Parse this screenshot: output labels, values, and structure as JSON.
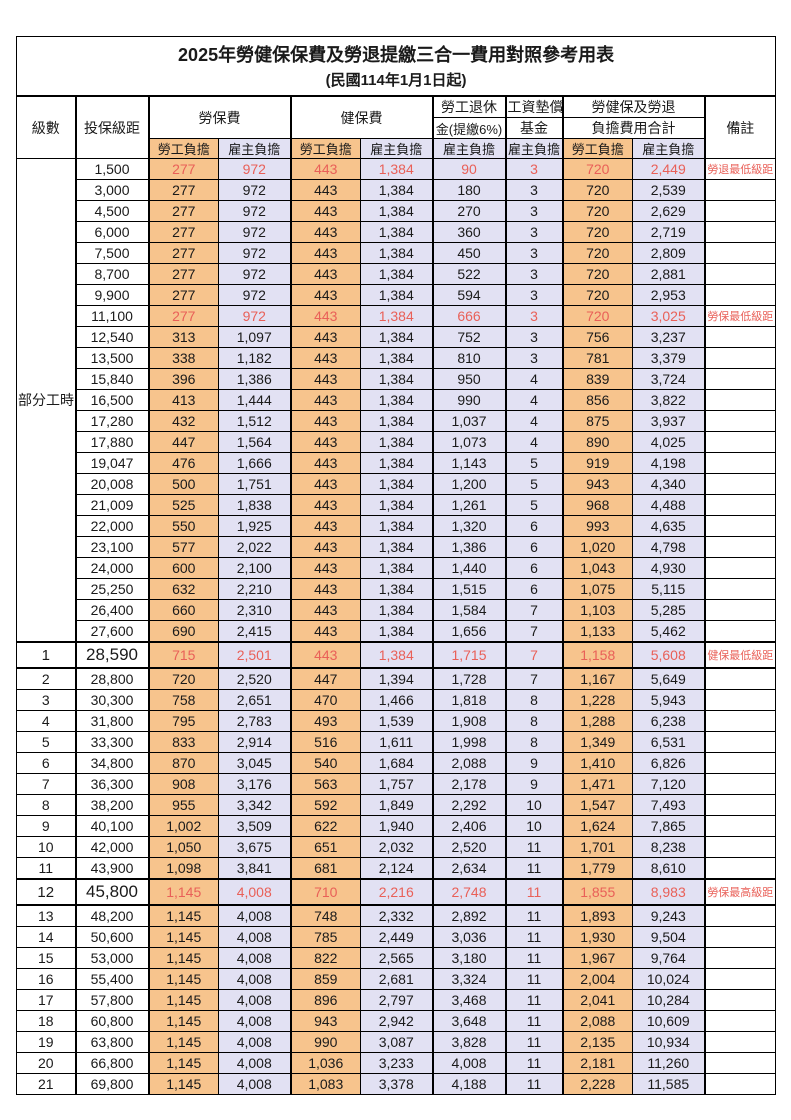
{
  "title": "2025年勞健保保費及勞退提繳三合一費用對照參考用表",
  "subtitle": "(民國114年1月1日起)",
  "colors": {
    "employee_column_bg": "#F7C48D",
    "employer_column_bg": "#E2E1F3",
    "highlight_red": "#E96058",
    "border": "#000000"
  },
  "header": {
    "level": "級數",
    "bracket": "投保級距",
    "labor_ins": "勞保費",
    "health_ins": "健保費",
    "pension_line1": "勞工退休",
    "pension_line2": "金(提繳6%)",
    "fund_line1": "工資墊償",
    "fund_line2": "基金",
    "total_line1": "勞健保及勞退",
    "total_line2": "負擔費用合計",
    "employee": "勞工負擔",
    "employer": "雇主負擔",
    "remark": "備註"
  },
  "group_label": "部分工時",
  "rows": [
    {
      "level": "",
      "bracket": "1,500",
      "li_emp": "277",
      "li_er": "972",
      "hi_emp": "443",
      "hi_er": "1,384",
      "pension": "90",
      "fund": "3",
      "tot_emp": "720",
      "tot_er": "2,449",
      "remark": "勞退最低級距",
      "hl": true,
      "big": false
    },
    {
      "level": "",
      "bracket": "3,000",
      "li_emp": "277",
      "li_er": "972",
      "hi_emp": "443",
      "hi_er": "1,384",
      "pension": "180",
      "fund": "3",
      "tot_emp": "720",
      "tot_er": "2,539",
      "remark": "",
      "hl": false,
      "big": false
    },
    {
      "level": "",
      "bracket": "4,500",
      "li_emp": "277",
      "li_er": "972",
      "hi_emp": "443",
      "hi_er": "1,384",
      "pension": "270",
      "fund": "3",
      "tot_emp": "720",
      "tot_er": "2,629",
      "remark": "",
      "hl": false,
      "big": false
    },
    {
      "level": "",
      "bracket": "6,000",
      "li_emp": "277",
      "li_er": "972",
      "hi_emp": "443",
      "hi_er": "1,384",
      "pension": "360",
      "fund": "3",
      "tot_emp": "720",
      "tot_er": "2,719",
      "remark": "",
      "hl": false,
      "big": false
    },
    {
      "level": "",
      "bracket": "7,500",
      "li_emp": "277",
      "li_er": "972",
      "hi_emp": "443",
      "hi_er": "1,384",
      "pension": "450",
      "fund": "3",
      "tot_emp": "720",
      "tot_er": "2,809",
      "remark": "",
      "hl": false,
      "big": false
    },
    {
      "level": "",
      "bracket": "8,700",
      "li_emp": "277",
      "li_er": "972",
      "hi_emp": "443",
      "hi_er": "1,384",
      "pension": "522",
      "fund": "3",
      "tot_emp": "720",
      "tot_er": "2,881",
      "remark": "",
      "hl": false,
      "big": false
    },
    {
      "level": "",
      "bracket": "9,900",
      "li_emp": "277",
      "li_er": "972",
      "hi_emp": "443",
      "hi_er": "1,384",
      "pension": "594",
      "fund": "3",
      "tot_emp": "720",
      "tot_er": "2,953",
      "remark": "",
      "hl": false,
      "big": false
    },
    {
      "level": "",
      "bracket": "11,100",
      "li_emp": "277",
      "li_er": "972",
      "hi_emp": "443",
      "hi_er": "1,384",
      "pension": "666",
      "fund": "3",
      "tot_emp": "720",
      "tot_er": "3,025",
      "remark": "勞保最低級距",
      "hl": true,
      "big": false
    },
    {
      "level": "",
      "bracket": "12,540",
      "li_emp": "313",
      "li_er": "1,097",
      "hi_emp": "443",
      "hi_er": "1,384",
      "pension": "752",
      "fund": "3",
      "tot_emp": "756",
      "tot_er": "3,237",
      "remark": "",
      "hl": false,
      "big": false
    },
    {
      "level": "",
      "bracket": "13,500",
      "li_emp": "338",
      "li_er": "1,182",
      "hi_emp": "443",
      "hi_er": "1,384",
      "pension": "810",
      "fund": "3",
      "tot_emp": "781",
      "tot_er": "3,379",
      "remark": "",
      "hl": false,
      "big": false
    },
    {
      "level": "",
      "bracket": "15,840",
      "li_emp": "396",
      "li_er": "1,386",
      "hi_emp": "443",
      "hi_er": "1,384",
      "pension": "950",
      "fund": "4",
      "tot_emp": "839",
      "tot_er": "3,724",
      "remark": "",
      "hl": false,
      "big": false
    },
    {
      "level": "",
      "bracket": "16,500",
      "li_emp": "413",
      "li_er": "1,444",
      "hi_emp": "443",
      "hi_er": "1,384",
      "pension": "990",
      "fund": "4",
      "tot_emp": "856",
      "tot_er": "3,822",
      "remark": "",
      "hl": false,
      "big": false
    },
    {
      "level": "",
      "bracket": "17,280",
      "li_emp": "432",
      "li_er": "1,512",
      "hi_emp": "443",
      "hi_er": "1,384",
      "pension": "1,037",
      "fund": "4",
      "tot_emp": "875",
      "tot_er": "3,937",
      "remark": "",
      "hl": false,
      "big": false
    },
    {
      "level": "",
      "bracket": "17,880",
      "li_emp": "447",
      "li_er": "1,564",
      "hi_emp": "443",
      "hi_er": "1,384",
      "pension": "1,073",
      "fund": "4",
      "tot_emp": "890",
      "tot_er": "4,025",
      "remark": "",
      "hl": false,
      "big": false
    },
    {
      "level": "",
      "bracket": "19,047",
      "li_emp": "476",
      "li_er": "1,666",
      "hi_emp": "443",
      "hi_er": "1,384",
      "pension": "1,143",
      "fund": "5",
      "tot_emp": "919",
      "tot_er": "4,198",
      "remark": "",
      "hl": false,
      "big": false
    },
    {
      "level": "",
      "bracket": "20,008",
      "li_emp": "500",
      "li_er": "1,751",
      "hi_emp": "443",
      "hi_er": "1,384",
      "pension": "1,200",
      "fund": "5",
      "tot_emp": "943",
      "tot_er": "4,340",
      "remark": "",
      "hl": false,
      "big": false
    },
    {
      "level": "",
      "bracket": "21,009",
      "li_emp": "525",
      "li_er": "1,838",
      "hi_emp": "443",
      "hi_er": "1,384",
      "pension": "1,261",
      "fund": "5",
      "tot_emp": "968",
      "tot_er": "4,488",
      "remark": "",
      "hl": false,
      "big": false
    },
    {
      "level": "",
      "bracket": "22,000",
      "li_emp": "550",
      "li_er": "1,925",
      "hi_emp": "443",
      "hi_er": "1,384",
      "pension": "1,320",
      "fund": "6",
      "tot_emp": "993",
      "tot_er": "4,635",
      "remark": "",
      "hl": false,
      "big": false
    },
    {
      "level": "",
      "bracket": "23,100",
      "li_emp": "577",
      "li_er": "2,022",
      "hi_emp": "443",
      "hi_er": "1,384",
      "pension": "1,386",
      "fund": "6",
      "tot_emp": "1,020",
      "tot_er": "4,798",
      "remark": "",
      "hl": false,
      "big": false
    },
    {
      "level": "",
      "bracket": "24,000",
      "li_emp": "600",
      "li_er": "2,100",
      "hi_emp": "443",
      "hi_er": "1,384",
      "pension": "1,440",
      "fund": "6",
      "tot_emp": "1,043",
      "tot_er": "4,930",
      "remark": "",
      "hl": false,
      "big": false
    },
    {
      "level": "",
      "bracket": "25,250",
      "li_emp": "632",
      "li_er": "2,210",
      "hi_emp": "443",
      "hi_er": "1,384",
      "pension": "1,515",
      "fund": "6",
      "tot_emp": "1,075",
      "tot_er": "5,115",
      "remark": "",
      "hl": false,
      "big": false
    },
    {
      "level": "",
      "bracket": "26,400",
      "li_emp": "660",
      "li_er": "2,310",
      "hi_emp": "443",
      "hi_er": "1,384",
      "pension": "1,584",
      "fund": "7",
      "tot_emp": "1,103",
      "tot_er": "5,285",
      "remark": "",
      "hl": false,
      "big": false
    },
    {
      "level": "",
      "bracket": "27,600",
      "li_emp": "690",
      "li_er": "2,415",
      "hi_emp": "443",
      "hi_er": "1,384",
      "pension": "1,656",
      "fund": "7",
      "tot_emp": "1,133",
      "tot_er": "5,462",
      "remark": "",
      "hl": false,
      "big": false
    },
    {
      "level": "1",
      "bracket": "28,590",
      "li_emp": "715",
      "li_er": "2,501",
      "hi_emp": "443",
      "hi_er": "1,384",
      "pension": "1,715",
      "fund": "7",
      "tot_emp": "1,158",
      "tot_er": "5,608",
      "remark": "健保最低級距",
      "hl": true,
      "big": true
    },
    {
      "level": "2",
      "bracket": "28,800",
      "li_emp": "720",
      "li_er": "2,520",
      "hi_emp": "447",
      "hi_er": "1,394",
      "pension": "1,728",
      "fund": "7",
      "tot_emp": "1,167",
      "tot_er": "5,649",
      "remark": "",
      "hl": false,
      "big": false
    },
    {
      "level": "3",
      "bracket": "30,300",
      "li_emp": "758",
      "li_er": "2,651",
      "hi_emp": "470",
      "hi_er": "1,466",
      "pension": "1,818",
      "fund": "8",
      "tot_emp": "1,228",
      "tot_er": "5,943",
      "remark": "",
      "hl": false,
      "big": false
    },
    {
      "level": "4",
      "bracket": "31,800",
      "li_emp": "795",
      "li_er": "2,783",
      "hi_emp": "493",
      "hi_er": "1,539",
      "pension": "1,908",
      "fund": "8",
      "tot_emp": "1,288",
      "tot_er": "6,238",
      "remark": "",
      "hl": false,
      "big": false
    },
    {
      "level": "5",
      "bracket": "33,300",
      "li_emp": "833",
      "li_er": "2,914",
      "hi_emp": "516",
      "hi_er": "1,611",
      "pension": "1,998",
      "fund": "8",
      "tot_emp": "1,349",
      "tot_er": "6,531",
      "remark": "",
      "hl": false,
      "big": false
    },
    {
      "level": "6",
      "bracket": "34,800",
      "li_emp": "870",
      "li_er": "3,045",
      "hi_emp": "540",
      "hi_er": "1,684",
      "pension": "2,088",
      "fund": "9",
      "tot_emp": "1,410",
      "tot_er": "6,826",
      "remark": "",
      "hl": false,
      "big": false
    },
    {
      "level": "7",
      "bracket": "36,300",
      "li_emp": "908",
      "li_er": "3,176",
      "hi_emp": "563",
      "hi_er": "1,757",
      "pension": "2,178",
      "fund": "9",
      "tot_emp": "1,471",
      "tot_er": "7,120",
      "remark": "",
      "hl": false,
      "big": false
    },
    {
      "level": "8",
      "bracket": "38,200",
      "li_emp": "955",
      "li_er": "3,342",
      "hi_emp": "592",
      "hi_er": "1,849",
      "pension": "2,292",
      "fund": "10",
      "tot_emp": "1,547",
      "tot_er": "7,493",
      "remark": "",
      "hl": false,
      "big": false
    },
    {
      "level": "9",
      "bracket": "40,100",
      "li_emp": "1,002",
      "li_er": "3,509",
      "hi_emp": "622",
      "hi_er": "1,940",
      "pension": "2,406",
      "fund": "10",
      "tot_emp": "1,624",
      "tot_er": "7,865",
      "remark": "",
      "hl": false,
      "big": false
    },
    {
      "level": "10",
      "bracket": "42,000",
      "li_emp": "1,050",
      "li_er": "3,675",
      "hi_emp": "651",
      "hi_er": "2,032",
      "pension": "2,520",
      "fund": "11",
      "tot_emp": "1,701",
      "tot_er": "8,238",
      "remark": "",
      "hl": false,
      "big": false
    },
    {
      "level": "11",
      "bracket": "43,900",
      "li_emp": "1,098",
      "li_er": "3,841",
      "hi_emp": "681",
      "hi_er": "2,124",
      "pension": "2,634",
      "fund": "11",
      "tot_emp": "1,779",
      "tot_er": "8,610",
      "remark": "",
      "hl": false,
      "big": false
    },
    {
      "level": "12",
      "bracket": "45,800",
      "li_emp": "1,145",
      "li_er": "4,008",
      "hi_emp": "710",
      "hi_er": "2,216",
      "pension": "2,748",
      "fund": "11",
      "tot_emp": "1,855",
      "tot_er": "8,983",
      "remark": "勞保最高級距",
      "hl": true,
      "big": true
    },
    {
      "level": "13",
      "bracket": "48,200",
      "li_emp": "1,145",
      "li_er": "4,008",
      "hi_emp": "748",
      "hi_er": "2,332",
      "pension": "2,892",
      "fund": "11",
      "tot_emp": "1,893",
      "tot_er": "9,243",
      "remark": "",
      "hl": false,
      "big": false
    },
    {
      "level": "14",
      "bracket": "50,600",
      "li_emp": "1,145",
      "li_er": "4,008",
      "hi_emp": "785",
      "hi_er": "2,449",
      "pension": "3,036",
      "fund": "11",
      "tot_emp": "1,930",
      "tot_er": "9,504",
      "remark": "",
      "hl": false,
      "big": false
    },
    {
      "level": "15",
      "bracket": "53,000",
      "li_emp": "1,145",
      "li_er": "4,008",
      "hi_emp": "822",
      "hi_er": "2,565",
      "pension": "3,180",
      "fund": "11",
      "tot_emp": "1,967",
      "tot_er": "9,764",
      "remark": "",
      "hl": false,
      "big": false
    },
    {
      "level": "16",
      "bracket": "55,400",
      "li_emp": "1,145",
      "li_er": "4,008",
      "hi_emp": "859",
      "hi_er": "2,681",
      "pension": "3,324",
      "fund": "11",
      "tot_emp": "2,004",
      "tot_er": "10,024",
      "remark": "",
      "hl": false,
      "big": false
    },
    {
      "level": "17",
      "bracket": "57,800",
      "li_emp": "1,145",
      "li_er": "4,008",
      "hi_emp": "896",
      "hi_er": "2,797",
      "pension": "3,468",
      "fund": "11",
      "tot_emp": "2,041",
      "tot_er": "10,284",
      "remark": "",
      "hl": false,
      "big": false
    },
    {
      "level": "18",
      "bracket": "60,800",
      "li_emp": "1,145",
      "li_er": "4,008",
      "hi_emp": "943",
      "hi_er": "2,942",
      "pension": "3,648",
      "fund": "11",
      "tot_emp": "2,088",
      "tot_er": "10,609",
      "remark": "",
      "hl": false,
      "big": false
    },
    {
      "level": "19",
      "bracket": "63,800",
      "li_emp": "1,145",
      "li_er": "4,008",
      "hi_emp": "990",
      "hi_er": "3,087",
      "pension": "3,828",
      "fund": "11",
      "tot_emp": "2,135",
      "tot_er": "10,934",
      "remark": "",
      "hl": false,
      "big": false
    },
    {
      "level": "20",
      "bracket": "66,800",
      "li_emp": "1,145",
      "li_er": "4,008",
      "hi_emp": "1,036",
      "hi_er": "3,233",
      "pension": "4,008",
      "fund": "11",
      "tot_emp": "2,181",
      "tot_er": "11,260",
      "remark": "",
      "hl": false,
      "big": false
    },
    {
      "level": "21",
      "bracket": "69,800",
      "li_emp": "1,145",
      "li_er": "4,008",
      "hi_emp": "1,083",
      "hi_er": "3,378",
      "pension": "4,188",
      "fund": "11",
      "tot_emp": "2,228",
      "tot_er": "11,585",
      "remark": "",
      "hl": false,
      "big": false
    }
  ]
}
